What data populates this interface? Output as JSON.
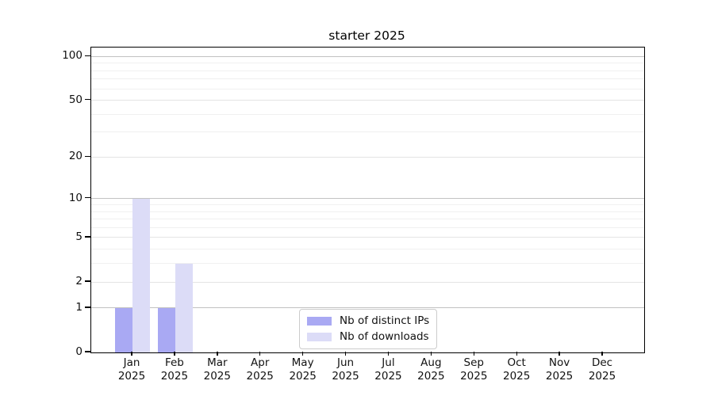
{
  "title": "starter 2025",
  "chart_data": {
    "type": "bar",
    "title": "starter 2025",
    "categories": [
      "Jan 2025",
      "Feb 2025",
      "Mar 2025",
      "Apr 2025",
      "May 2025",
      "Jun 2025",
      "Jul 2025",
      "Aug 2025",
      "Sep 2025",
      "Oct 2025",
      "Nov 2025",
      "Dec 2025"
    ],
    "months": [
      "Jan",
      "Feb",
      "Mar",
      "Apr",
      "May",
      "Jun",
      "Jul",
      "Aug",
      "Sep",
      "Oct",
      "Nov",
      "Dec"
    ],
    "year": "2025",
    "series": [
      {
        "name": "Nb of distinct IPs",
        "key": "distinct-ips",
        "color": "#a9a9f3",
        "values": [
          1,
          1,
          0,
          0,
          0,
          0,
          0,
          0,
          0,
          0,
          0,
          0
        ]
      },
      {
        "name": "Nb of downloads",
        "key": "downloads",
        "color": "#dcdcf7",
        "values": [
          10,
          3,
          0,
          0,
          0,
          0,
          0,
          0,
          0,
          0,
          0,
          0
        ]
      }
    ],
    "yscale": "log1p",
    "yticks": [
      0,
      1,
      2,
      5,
      10,
      20,
      50,
      100
    ],
    "ylim": [
      0,
      115
    ],
    "grid": true,
    "legend": {
      "position": "lower center",
      "labels": [
        "Nb of distinct IPs",
        "Nb of downloads"
      ]
    }
  }
}
